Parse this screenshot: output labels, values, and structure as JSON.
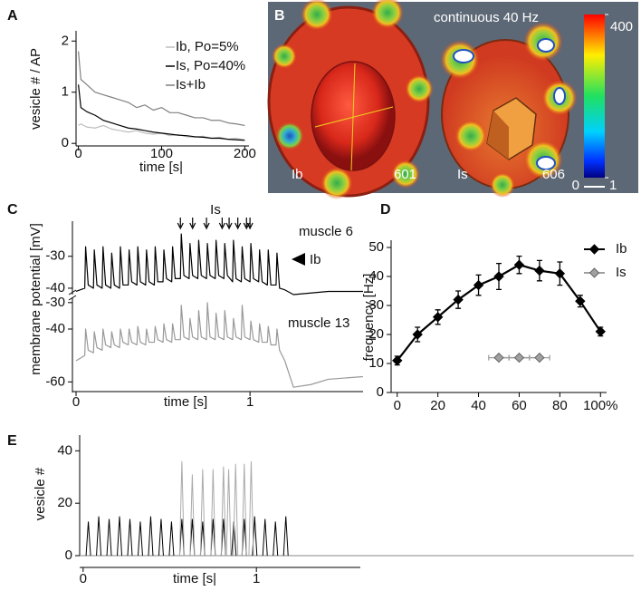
{
  "chart_data": [
    {
      "type": "line",
      "label": "A",
      "xlabel": "time [s|",
      "ylabel": "vesicle # / AP",
      "xlim": [
        -5,
        205
      ],
      "xticks": [
        0,
        100,
        200
      ],
      "ylim": [
        -0.05,
        2.2
      ],
      "yticks": [
        0,
        1,
        2
      ],
      "legend": "upper right",
      "x": [
        0,
        3,
        10,
        20,
        30,
        40,
        50,
        60,
        70,
        80,
        90,
        100,
        110,
        120,
        130,
        140,
        150,
        160,
        170,
        180,
        190,
        200
      ],
      "series": [
        {
          "name": "Ib, Po=5%",
          "color": "#bdbdbd",
          "values": [
            0.35,
            0.38,
            0.32,
            0.3,
            0.35,
            0.28,
            0.25,
            0.22,
            0.25,
            0.2,
            0.18,
            0.2,
            0.15,
            0.17,
            0.13,
            0.12,
            0.14,
            0.1,
            0.12,
            0.08,
            0.1,
            0.07
          ]
        },
        {
          "name": "Is, Po=40%",
          "color": "#000000",
          "values": [
            1.15,
            0.7,
            0.62,
            0.55,
            0.45,
            0.4,
            0.35,
            0.3,
            0.28,
            0.25,
            0.22,
            0.2,
            0.18,
            0.16,
            0.15,
            0.13,
            0.12,
            0.1,
            0.1,
            0.08,
            0.07,
            0.06
          ]
        },
        {
          "name": "Is+Ib",
          "color": "#808080",
          "values": [
            1.8,
            1.25,
            1.15,
            1.0,
            0.95,
            0.9,
            0.85,
            0.8,
            0.7,
            0.75,
            0.65,
            0.7,
            0.6,
            0.6,
            0.55,
            0.5,
            0.5,
            0.45,
            0.45,
            0.4,
            0.38,
            0.35
          ]
        }
      ]
    },
    {
      "type": "surface",
      "label": "B",
      "title": "continuous 40 Hz",
      "cells": [
        {
          "name": "Ib",
          "count": 601
        },
        {
          "name": "Is",
          "count": 606
        }
      ],
      "clim": [
        0,
        400
      ],
      "cticks": [
        0,
        400
      ],
      "scale_bar": 1
    },
    {
      "type": "line",
      "label": "C",
      "xlabel": "time [s]",
      "ylabel": "membrane potential [mV]",
      "xlim": [
        0,
        1.65
      ],
      "xticks": [
        0,
        1
      ],
      "ylim": [
        -42,
        -19
      ],
      "yticks": [
        -30,
        -40
      ],
      "y2lim": [
        -64,
        -28
      ],
      "y2ticks": [
        -30,
        -40,
        -60
      ],
      "x": [
        0,
        0.05,
        0.055,
        0.07,
        0.1,
        0.105,
        0.12,
        0.15,
        0.155,
        0.17,
        0.2,
        0.205,
        0.22,
        0.25,
        0.255,
        0.27,
        0.3,
        0.305,
        0.32,
        0.35,
        0.355,
        0.37,
        0.4,
        0.405,
        0.42,
        0.45,
        0.455,
        0.47,
        0.5,
        0.505,
        0.52,
        0.55,
        0.555,
        0.57,
        0.6,
        0.605,
        0.62,
        0.65,
        0.655,
        0.67,
        0.7,
        0.705,
        0.72,
        0.75,
        0.755,
        0.77,
        0.8,
        0.805,
        0.82,
        0.85,
        0.855,
        0.87,
        0.9,
        0.905,
        0.92,
        0.95,
        0.955,
        0.97,
        1.0,
        1.005,
        1.02,
        1.05,
        1.055,
        1.07,
        1.1,
        1.105,
        1.12,
        1.15,
        1.155,
        1.17,
        1.2,
        1.25,
        1.35,
        1.45,
        1.65
      ],
      "series": [
        {
          "name": "muscle 6",
          "color": "#000000",
          "values": [
            -41,
            -40,
            -27,
            -39,
            -40,
            -28,
            -39,
            -40,
            -27,
            -39,
            -40,
            -29,
            -39,
            -40,
            -27,
            -39,
            -39,
            -28,
            -38,
            -39,
            -27,
            -38,
            -39,
            -28,
            -38,
            -39,
            -27,
            -38,
            -38,
            -28,
            -37,
            -38,
            -27,
            -37,
            -37,
            -23,
            -36,
            -37,
            -26,
            -36,
            -37,
            -25,
            -36,
            -37,
            -26,
            -36,
            -37,
            -25,
            -36,
            -37,
            -26,
            -36,
            -38,
            -25,
            -37,
            -38,
            -27,
            -37,
            -38,
            -26,
            -37,
            -38,
            -28,
            -38,
            -39,
            -28,
            -39,
            -39,
            -29,
            -40,
            -40.5,
            -42,
            -41.5,
            -41,
            -41
          ]
        },
        {
          "name": "muscle 13",
          "color": "#999999",
          "axis": "y2",
          "values": [
            -52,
            -50,
            -40,
            -48,
            -49,
            -41,
            -47,
            -48,
            -40,
            -46,
            -47,
            -41,
            -46,
            -47,
            -40,
            -45,
            -46,
            -40,
            -45,
            -46,
            -39,
            -45,
            -46,
            -40,
            -45,
            -45,
            -39,
            -44,
            -45,
            -38,
            -44,
            -45,
            -38,
            -44,
            -44,
            -31,
            -43,
            -44,
            -36,
            -43,
            -44,
            -33,
            -43,
            -44,
            -30,
            -43,
            -44,
            -34,
            -43,
            -44,
            -33,
            -43,
            -44,
            -36,
            -43,
            -44,
            -31,
            -43,
            -44,
            -37,
            -44,
            -45,
            -38,
            -45,
            -45,
            -39,
            -46,
            -46,
            -40,
            -48,
            -52,
            -62,
            -61,
            -59,
            -58
          ]
        }
      ],
      "annotations": [
        {
          "text": "Is",
          "x": [
            0.6,
            0.67,
            0.75,
            0.84,
            0.88,
            0.93,
            0.98,
            1.0
          ]
        },
        {
          "text": "Ib"
        }
      ]
    },
    {
      "type": "line",
      "label": "D",
      "ylabel": "frequency [Hz]",
      "xlim": [
        -3,
        103
      ],
      "xticks": [
        0,
        20,
        40,
        60,
        80,
        {
          "value": 100,
          "label": "100%"
        }
      ],
      "ylim": [
        0,
        52.5
      ],
      "yticks": [
        0,
        10,
        20,
        30,
        40,
        50
      ],
      "legend": "upper right",
      "markers": "diamond",
      "series": [
        {
          "name": "Ib",
          "color": "#000000",
          "x": [
            0,
            10,
            20,
            30,
            40,
            50,
            60,
            70,
            80,
            90,
            100
          ],
          "values": [
            11,
            20,
            26,
            32,
            37,
            40,
            44,
            42,
            41,
            31.5,
            21
          ],
          "errors": [
            1.5,
            2.5,
            2.5,
            3,
            3.5,
            4.5,
            3,
            3.5,
            4,
            2,
            1.5
          ]
        },
        {
          "name": "Is",
          "color": "#a0a0a0",
          "x": [
            50,
            60,
            70
          ],
          "values": [
            12,
            12,
            12
          ],
          "xerrors": [
            5,
            5,
            5
          ]
        }
      ]
    },
    {
      "type": "spike",
      "label": "E",
      "xlabel": "time [s|",
      "ylabel": "vesicle #",
      "xlim": [
        -0.02,
        1.6
      ],
      "xticks": [
        0,
        1
      ],
      "ylim": [
        0,
        46
      ],
      "yticks": [
        0,
        20,
        40
      ],
      "series": [
        {
          "color": "#000000",
          "x": [
            0.03,
            0.09,
            0.15,
            0.21,
            0.27,
            0.33,
            0.39,
            0.45,
            0.51,
            0.57,
            0.63,
            0.69,
            0.75,
            0.81,
            0.87,
            0.93,
            0.99,
            1.05,
            1.11,
            1.17
          ],
          "values": [
            13,
            15,
            14,
            15,
            14,
            13,
            15,
            14,
            13,
            14,
            14,
            13,
            14,
            14,
            13,
            14,
            15,
            14,
            13,
            15
          ]
        },
        {
          "color": "#aaaaaa",
          "x": [
            0.57,
            0.63,
            0.69,
            0.75,
            0.81,
            0.84,
            0.88,
            0.93,
            0.97
          ],
          "values": [
            36,
            31,
            33,
            33,
            34,
            33,
            35,
            35,
            36
          ]
        }
      ]
    }
  ]
}
